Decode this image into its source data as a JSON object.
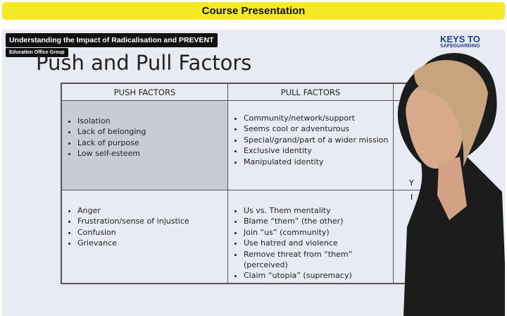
{
  "header": {
    "title": "Course Presentation"
  },
  "video": {
    "course_title": "Understanding the Impact of Radicalisation and PREVENT",
    "provider": "Education Office Group",
    "logo": {
      "line1": "KEYS TO",
      "line2": "SAFEGUARDING"
    }
  },
  "slide": {
    "title": "Push and Pull Factors",
    "table": {
      "headers": [
        "PUSH FACTORS",
        "PULL FACTORS"
      ],
      "rows": [
        [
          [
            "Isolation",
            "Lack of belonging",
            "Lack of purpose",
            "Low self-esteem"
          ],
          [
            "Community/network/support",
            "Seems cool or adventurous",
            "Special/grand/part of a wider mission",
            "Exclusive identity",
            "Manipulated identity"
          ]
        ],
        [
          [
            "Anger",
            "Frustration/sense of injustice",
            "Confusion",
            "Grievance"
          ],
          [
            "Us vs. Them mentality",
            "Blame “them” (the other)",
            "Join “us” (community)",
            "Use hatred and violence",
            "Remove threat from “them” (perceived)",
            "Claim “utopia” (supremacy)"
          ]
        ]
      ],
      "partial_column": [
        "Y",
        "I"
      ]
    }
  }
}
